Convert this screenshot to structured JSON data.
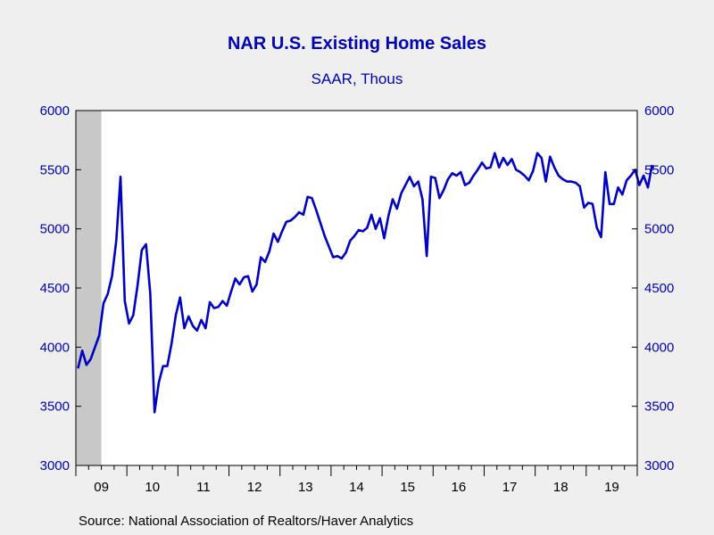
{
  "chart_data": {
    "type": "line",
    "title": "NAR U.S. Existing Home Sales",
    "subtitle": "SAAR, Thous",
    "source": "Source:  National Association of Realtors/Haver Analytics",
    "ylim": [
      3000,
      6000
    ],
    "y_ticks": [
      "3000",
      "3500",
      "4000",
      "4500",
      "5000",
      "5500",
      "6000"
    ],
    "x_tick_labels": [
      "09",
      "10",
      "11",
      "12",
      "13",
      "14",
      "15",
      "16",
      "17",
      "18",
      "19"
    ],
    "grid": false,
    "recession_shading": {
      "start": "2009-01",
      "end": "2009-06",
      "color": "#c8c8c8"
    },
    "line_color": "#0000c0",
    "background": "#efefef",
    "plot_background": "#ffffff",
    "series": [
      {
        "x_start": "2009-01",
        "frequency": "monthly",
        "values": [
          3820,
          3970,
          3850,
          3900,
          4000,
          4100,
          4370,
          4450,
          4600,
          4900,
          5440,
          4390,
          4200,
          4270,
          4520,
          4820,
          4870,
          4450,
          3450,
          3700,
          3840,
          3840,
          4030,
          4270,
          4420,
          4160,
          4260,
          4180,
          4140,
          4230,
          4160,
          4380,
          4330,
          4340,
          4390,
          4350,
          4470,
          4580,
          4530,
          4590,
          4600,
          4470,
          4530,
          4760,
          4720,
          4810,
          4960,
          4890,
          4980,
          5060,
          5070,
          5100,
          5140,
          5120,
          5270,
          5260,
          5160,
          5050,
          4940,
          4850,
          4760,
          4770,
          4750,
          4800,
          4900,
          4940,
          4990,
          4980,
          5010,
          5120,
          5000,
          5090,
          4920,
          5110,
          5250,
          5170,
          5300,
          5370,
          5440,
          5360,
          5400,
          5250,
          4770,
          5440,
          5430,
          5260,
          5330,
          5420,
          5470,
          5450,
          5480,
          5370,
          5390,
          5450,
          5500,
          5560,
          5510,
          5520,
          5640,
          5520,
          5600,
          5540,
          5590,
          5500,
          5480,
          5450,
          5410,
          5490,
          5640,
          5600,
          5400,
          5610,
          5520,
          5450,
          5420,
          5400,
          5400,
          5390,
          5360,
          5180,
          5220,
          5210,
          5010,
          4930,
          5480,
          5210,
          5210,
          5350,
          5290,
          5410,
          5450,
          5500,
          5370,
          5450,
          5350,
          5540
        ]
      }
    ]
  }
}
